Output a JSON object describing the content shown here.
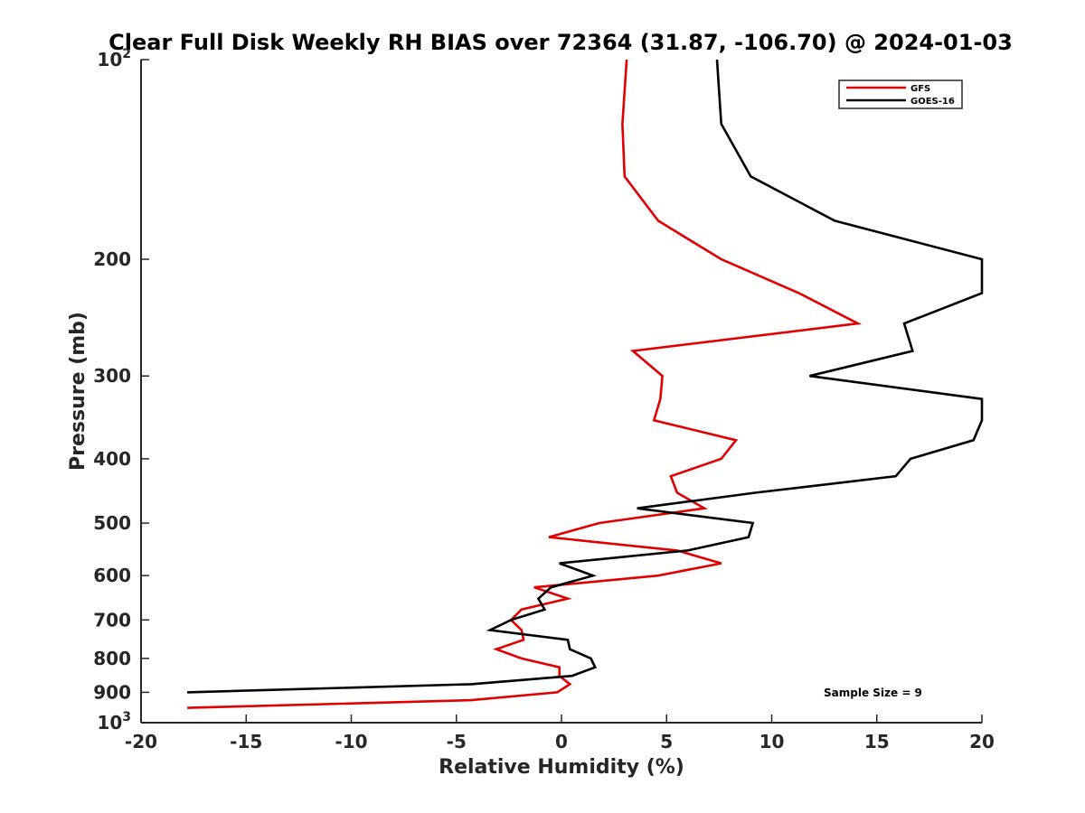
{
  "chart_data": {
    "type": "line",
    "title": "Clear Full Disk Weekly RH BIAS over 72364 (31.87, -106.70) @ 2024-01-03",
    "xlabel": "Relative Humidity (%)",
    "ylabel": "Pressure (mb)",
    "xlim": [
      -20,
      20
    ],
    "ylim": [
      100,
      1000
    ],
    "y_scale": "log",
    "y_reversed": true,
    "x_ticks": [
      "-20",
      "-15",
      "-10",
      "-5",
      "0",
      "5",
      "10",
      "15",
      "20"
    ],
    "y_ticks": [
      {
        "value": 100,
        "base": "10",
        "exp": "2"
      },
      {
        "value": 200,
        "label": "200"
      },
      {
        "value": 300,
        "label": "300"
      },
      {
        "value": 400,
        "label": "400"
      },
      {
        "value": 500,
        "label": "500"
      },
      {
        "value": 600,
        "label": "600"
      },
      {
        "value": 700,
        "label": "700"
      },
      {
        "value": 800,
        "label": "800"
      },
      {
        "value": 900,
        "label": "900"
      },
      {
        "value": 1000,
        "base": "10",
        "exp": "3"
      }
    ],
    "legend_position": "top-right",
    "series": [
      {
        "name": "GFS",
        "color": "#e00000",
        "points": [
          [
            3.1,
            100
          ],
          [
            2.9,
            125
          ],
          [
            3.0,
            150
          ],
          [
            4.6,
            175
          ],
          [
            7.6,
            200
          ],
          [
            11.3,
            225
          ],
          [
            14.1,
            250
          ],
          [
            3.4,
            275
          ],
          [
            4.8,
            300
          ],
          [
            4.7,
            325
          ],
          [
            4.4,
            350
          ],
          [
            8.3,
            375
          ],
          [
            7.6,
            400
          ],
          [
            5.2,
            425
          ],
          [
            5.5,
            450
          ],
          [
            6.8,
            475
          ],
          [
            1.8,
            500
          ],
          [
            -0.6,
            525
          ],
          [
            5.5,
            550
          ],
          [
            7.6,
            575
          ],
          [
            4.6,
            600
          ],
          [
            -1.3,
            625
          ],
          [
            0.3,
            650
          ],
          [
            -1.9,
            675
          ],
          [
            -2.4,
            700
          ],
          [
            -1.9,
            725
          ],
          [
            -1.8,
            750
          ],
          [
            -3.1,
            775
          ],
          [
            -1.9,
            800
          ],
          [
            -0.1,
            825
          ],
          [
            -0.1,
            850
          ],
          [
            0.4,
            875
          ],
          [
            -0.2,
            900
          ],
          [
            -4.3,
            925
          ],
          [
            -17.8,
            950
          ]
        ]
      },
      {
        "name": "GOES-16",
        "color": "#000000",
        "points": [
          [
            7.4,
            100
          ],
          [
            7.6,
            125
          ],
          [
            9.0,
            150
          ],
          [
            13.0,
            175
          ],
          [
            20.0,
            200
          ],
          [
            20.0,
            225
          ],
          [
            16.3,
            250
          ],
          [
            16.7,
            275
          ],
          [
            11.8,
            300
          ],
          [
            20.0,
            325
          ],
          [
            20.0,
            350
          ],
          [
            19.6,
            375
          ],
          [
            16.6,
            400
          ],
          [
            15.9,
            425
          ],
          [
            9.2,
            450
          ],
          [
            3.6,
            475
          ],
          [
            9.1,
            500
          ],
          [
            8.9,
            525
          ],
          [
            6.0,
            550
          ],
          [
            -0.1,
            575
          ],
          [
            1.5,
            600
          ],
          [
            -0.5,
            625
          ],
          [
            -1.1,
            650
          ],
          [
            -0.8,
            675
          ],
          [
            -2.4,
            700
          ],
          [
            -3.4,
            725
          ],
          [
            0.3,
            750
          ],
          [
            0.4,
            775
          ],
          [
            1.4,
            800
          ],
          [
            1.6,
            825
          ],
          [
            0.5,
            850
          ],
          [
            -4.3,
            875
          ],
          [
            -17.8,
            900
          ]
        ]
      }
    ],
    "annotations": [
      "Sample Size = 9"
    ]
  }
}
